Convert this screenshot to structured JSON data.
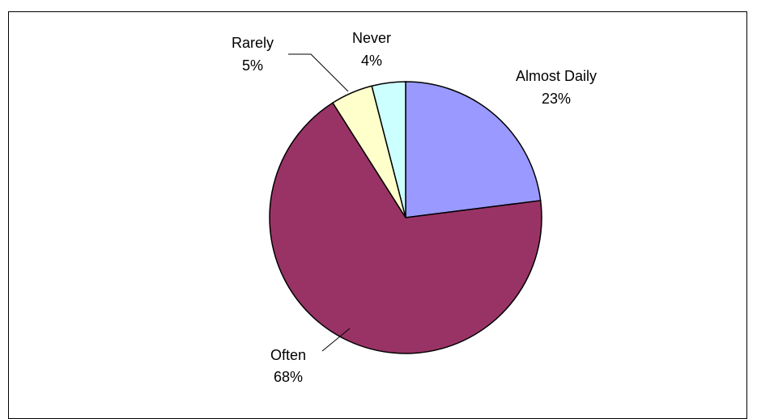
{
  "chart_data": {
    "type": "pie",
    "title": "",
    "slices": [
      {
        "label": "Almost Daily",
        "value": 23,
        "pct_label": "23%",
        "color": "#9999ff"
      },
      {
        "label": "Often",
        "value": 68,
        "pct_label": "68%",
        "color": "#993366"
      },
      {
        "label": "Rarely",
        "value": 5,
        "pct_label": "5%",
        "color": "#ffffcc"
      },
      {
        "label": "Never",
        "value": 4,
        "pct_label": "4%",
        "color": "#ccffff"
      }
    ],
    "start_angle": "12 o'clock",
    "direction": "clockwise",
    "legend": "none",
    "stroke_color": "#000000"
  }
}
